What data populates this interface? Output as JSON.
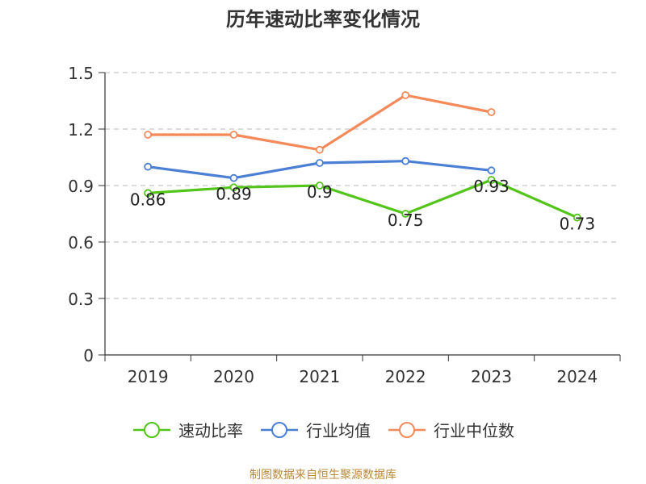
{
  "title": "历年速动比率变化情况",
  "source": "制图数据来自恒生聚源数据库",
  "chart_data": {
    "type": "line",
    "categories": [
      "2019",
      "2020",
      "2021",
      "2022",
      "2023",
      "2024"
    ],
    "ylim": [
      0,
      1.5
    ],
    "yticks": [
      "0",
      "0.3",
      "0.6",
      "0.9",
      "1.2",
      "1.5"
    ],
    "ytick_values": [
      0,
      0.3,
      0.6,
      0.9,
      1.2,
      1.5
    ],
    "grid": true,
    "legend_position": "bottom",
    "series": [
      {
        "name": "速动比率",
        "color": "#52c41a",
        "values": [
          0.86,
          0.89,
          0.9,
          0.75,
          0.93,
          0.73
        ],
        "labels": [
          "0.86",
          "0.89",
          "0.9",
          "0.75",
          "0.93",
          "0.73"
        ]
      },
      {
        "name": "行业均值",
        "color": "#4a7fd4",
        "values": [
          1.0,
          0.94,
          1.02,
          1.03,
          0.98,
          null
        ]
      },
      {
        "name": "行业中位数",
        "color": "#f5895a",
        "values": [
          1.17,
          1.17,
          1.09,
          1.38,
          1.29,
          null
        ]
      }
    ]
  }
}
